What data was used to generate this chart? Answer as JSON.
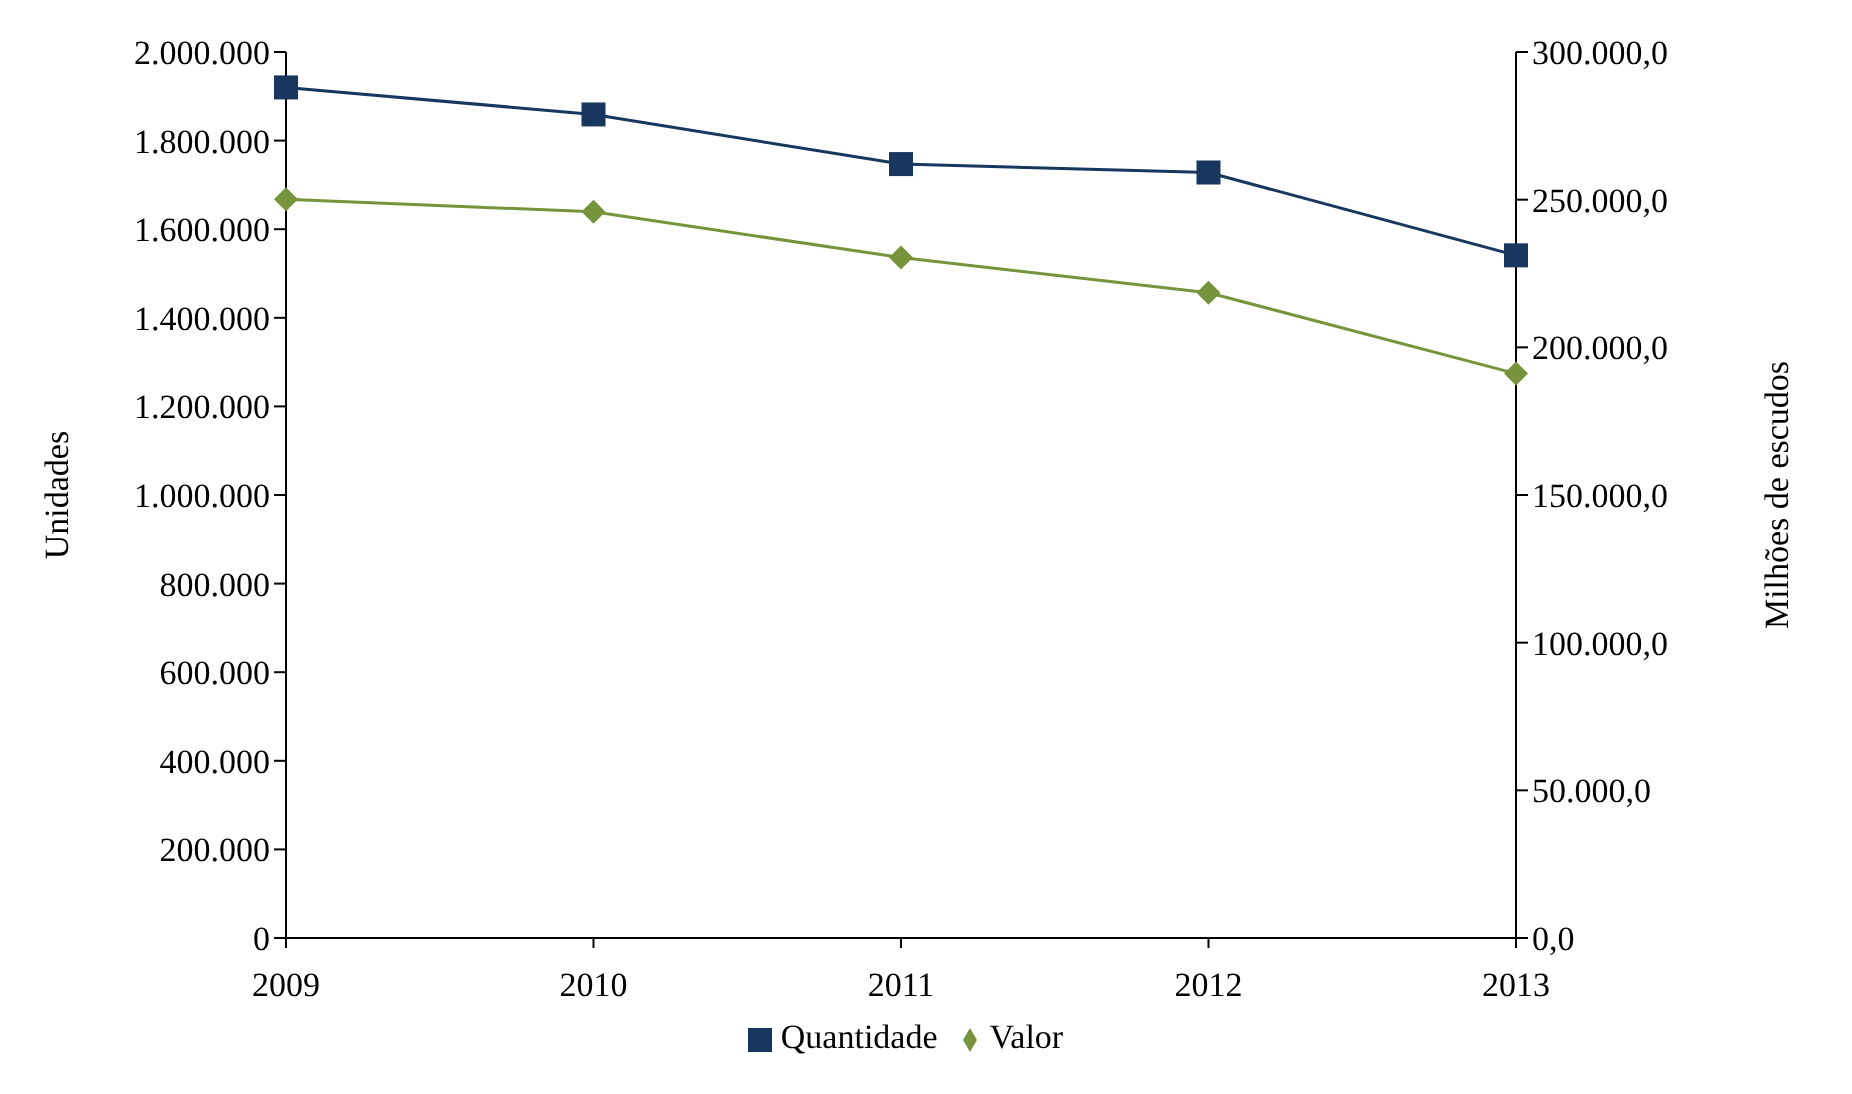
{
  "chart_data": {
    "type": "line",
    "categories": [
      "2009",
      "2010",
      "2011",
      "2012",
      "2013"
    ],
    "ylabel": "Unidades",
    "y2label": "Milhões de escudos",
    "series": [
      {
        "name": "Quantidade",
        "color": "#17375e",
        "marker": "square",
        "values": [
          1920000,
          1859000,
          1747000,
          1728000,
          1541000
        ]
      },
      {
        "name": "Valor",
        "color": "#77933c",
        "marker": "diamond",
        "axis": "y2",
        "values": [
          250100,
          245900,
          230400,
          218500,
          191100
        ]
      }
    ],
    "ylim": [
      0,
      2000000
    ],
    "yticks": [
      {
        "value": 0,
        "label": "0"
      },
      {
        "value": 200000,
        "label": "200.000"
      },
      {
        "value": 400000,
        "label": "400.000"
      },
      {
        "value": 600000,
        "label": "600.000"
      },
      {
        "value": 800000,
        "label": "800.000"
      },
      {
        "value": 1000000,
        "label": "1.000.000"
      },
      {
        "value": 1200000,
        "label": "1.200.000"
      },
      {
        "value": 1400000,
        "label": "1.400.000"
      },
      {
        "value": 1600000,
        "label": "1.600.000"
      },
      {
        "value": 1800000,
        "label": "1.800.000"
      },
      {
        "value": 2000000,
        "label": "2.000.000"
      }
    ],
    "y2lim": [
      0,
      300000
    ],
    "y2ticks": [
      {
        "value": 0,
        "label": "0,0"
      },
      {
        "value": 50000,
        "label": "50.000,0"
      },
      {
        "value": 100000,
        "label": "100.000,0"
      },
      {
        "value": 150000,
        "label": "150.000,0"
      },
      {
        "value": 200000,
        "label": "200.000,0"
      },
      {
        "value": 250000,
        "label": "250.000,0"
      },
      {
        "value": 300000,
        "label": "300.000,0"
      }
    ],
    "grid": false,
    "legend": "bottom",
    "line_style": "solid"
  }
}
